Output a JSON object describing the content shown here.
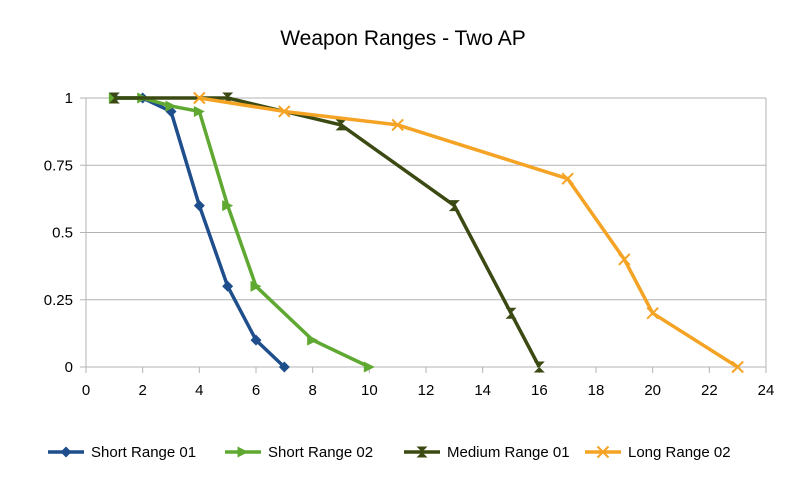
{
  "chart_data": {
    "type": "line",
    "title": "Weapon Ranges - Two AP",
    "xlabel": "",
    "ylabel": "",
    "xlim": [
      0,
      24
    ],
    "ylim": [
      0,
      1
    ],
    "x_ticks": [
      0,
      2,
      4,
      6,
      8,
      10,
      12,
      14,
      16,
      18,
      20,
      22,
      24
    ],
    "y_ticks": [
      0,
      0.25,
      0.5,
      0.75,
      1
    ],
    "y_tick_labels": [
      "0",
      "0.25",
      "0.5",
      "0.75",
      "1"
    ],
    "grid": "horizontal",
    "legend": "bottom",
    "series": [
      {
        "name": "Short Range 01",
        "color": "#1f4e8c",
        "marker": "diamond",
        "x": [
          1,
          2,
          3,
          4,
          5,
          6,
          7
        ],
        "y": [
          1,
          1,
          0.95,
          0.6,
          0.3,
          0.1,
          0
        ]
      },
      {
        "name": "Short Range 02",
        "color": "#5fa832",
        "marker": "triangle-right",
        "x": [
          1,
          2,
          3,
          4,
          5,
          6,
          8,
          10
        ],
        "y": [
          1,
          1,
          0.97,
          0.95,
          0.6,
          0.3,
          0.1,
          0
        ]
      },
      {
        "name": "Medium Range 01",
        "color": "#3b4a12",
        "marker": "hourglass",
        "x": [
          1,
          5,
          9,
          13,
          15,
          16
        ],
        "y": [
          1,
          1,
          0.9,
          0.6,
          0.2,
          0
        ]
      },
      {
        "name": "Long Range 02",
        "color": "#f4a324",
        "marker": "x",
        "x": [
          4,
          7,
          11,
          17,
          19,
          20,
          23
        ],
        "y": [
          1,
          0.95,
          0.9,
          0.7,
          0.4,
          0.2,
          0
        ]
      }
    ]
  }
}
